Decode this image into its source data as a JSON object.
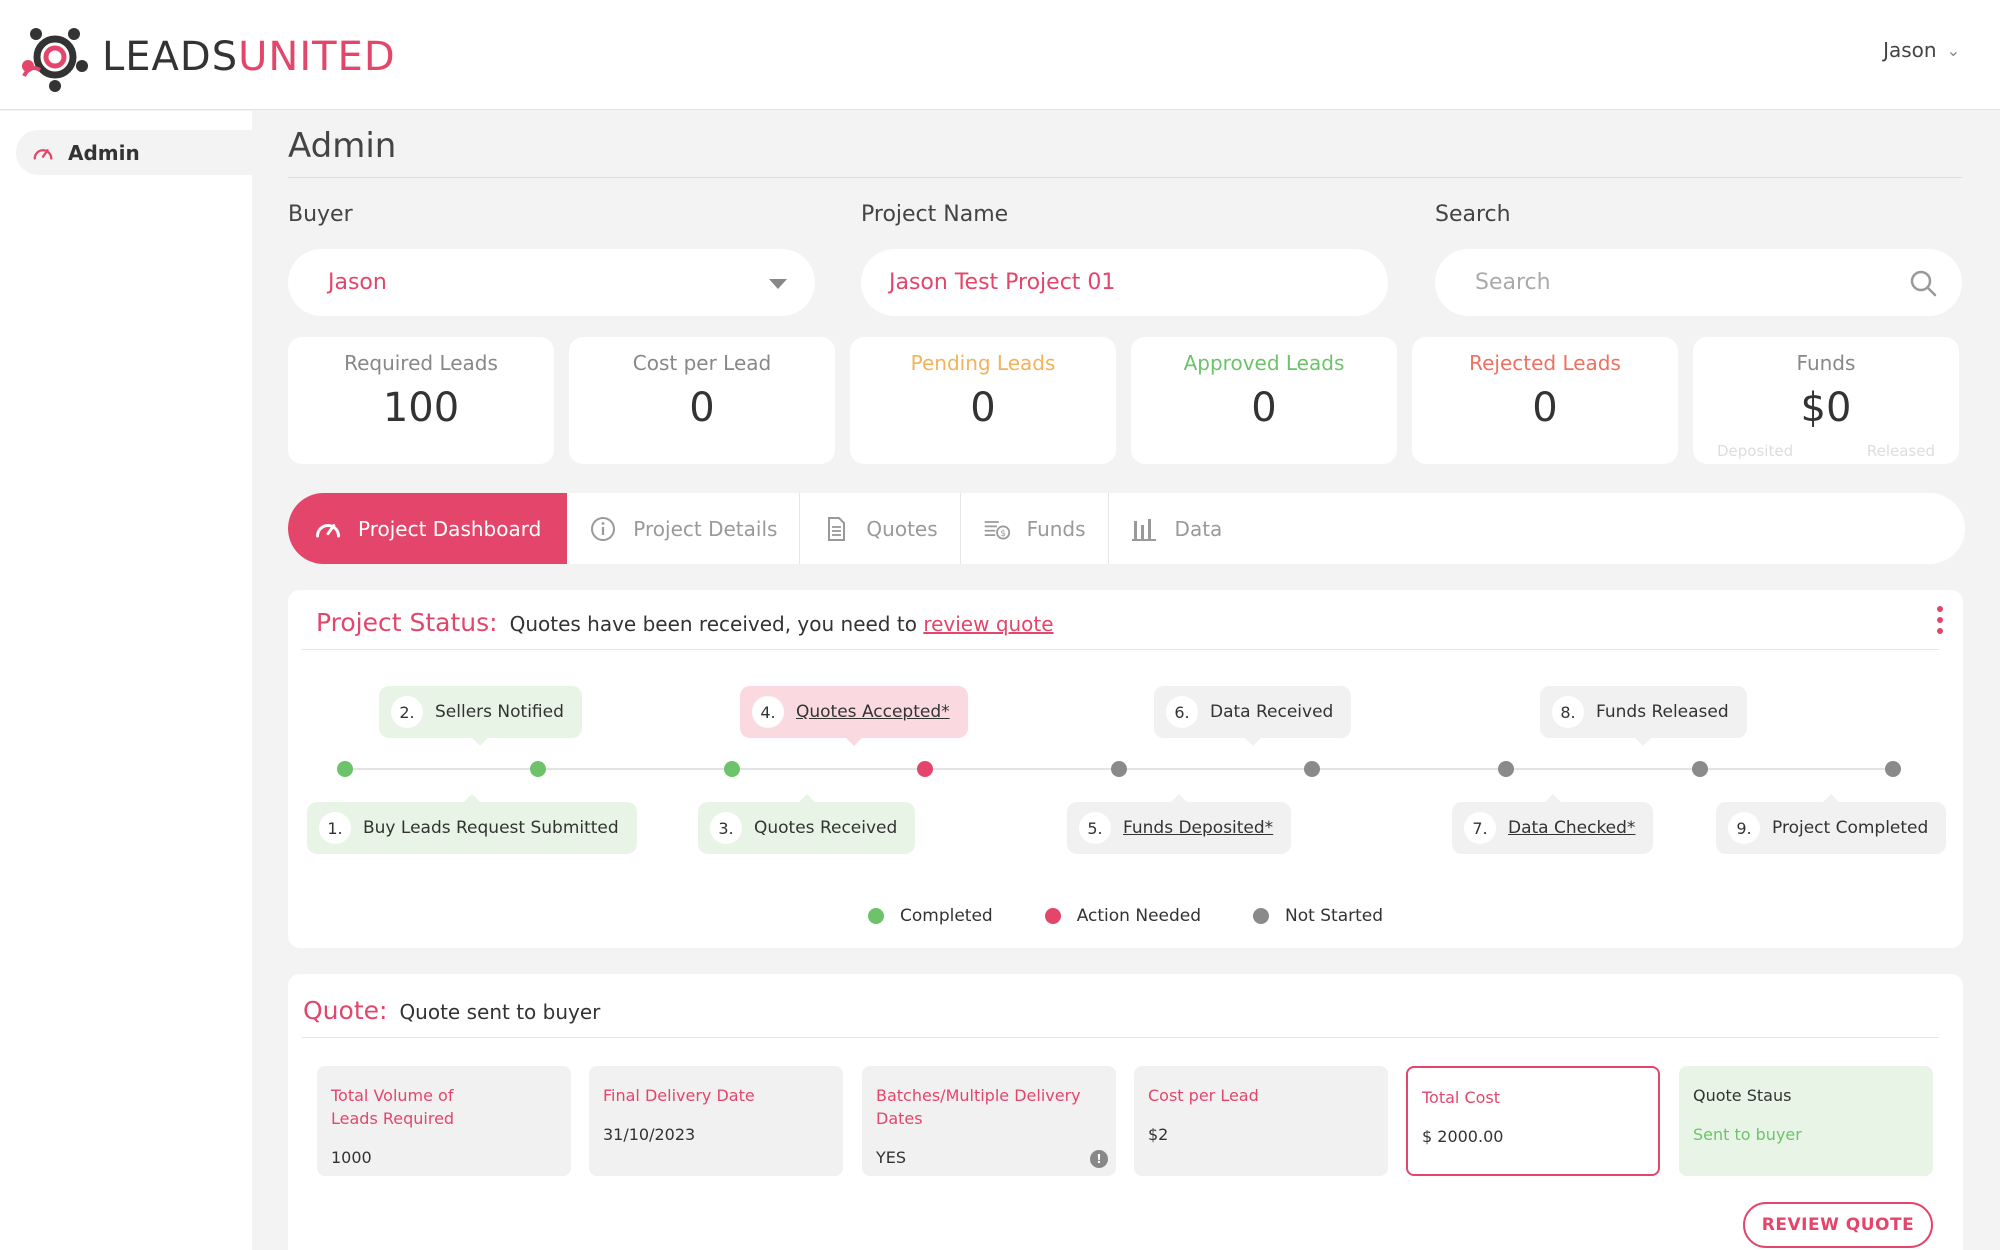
{
  "header": {
    "brand_part1": "LEADS",
    "brand_part2": "UNITED",
    "user_name": "Jason",
    "brand_color": "#e4466b"
  },
  "sidebar": {
    "items": [
      {
        "label": "Admin",
        "icon": "dashboard-gauge-icon",
        "active": true
      }
    ]
  },
  "main": {
    "title": "Admin",
    "filters": {
      "buyer_label": "Buyer",
      "buyer_value": "Jason",
      "project_label": "Project Name",
      "project_value": "Jason Test Project 01",
      "search_label": "Search",
      "search_placeholder": "Search"
    },
    "stats": [
      {
        "label": "Required Leads",
        "value": "100",
        "color": "#888888"
      },
      {
        "label": "Cost per Lead",
        "value": "0",
        "color": "#888888"
      },
      {
        "label": "Pending Leads",
        "value": "0",
        "color": "#f2b35a"
      },
      {
        "label": "Approved Leads",
        "value": "0",
        "color": "#6cc36a"
      },
      {
        "label": "Rejected Leads",
        "value": "0",
        "color": "#f07060"
      },
      {
        "label": "Funds",
        "value": "$0",
        "color": "#888888",
        "sub_left": "Deposited",
        "sub_right": "Released"
      }
    ],
    "tabs": [
      {
        "label": "Project Dashboard",
        "icon": "gauge-icon",
        "active": true
      },
      {
        "label": "Project Details",
        "icon": "info-icon"
      },
      {
        "label": "Quotes",
        "icon": "document-icon"
      },
      {
        "label": "Funds",
        "icon": "money-icon"
      },
      {
        "label": "Data",
        "icon": "bar-chart-icon"
      }
    ],
    "status": {
      "title": "Project Status:",
      "message": "Quotes have been received, you need to",
      "link": "review quote",
      "steps": [
        {
          "num": "1.",
          "label": "Buy Leads Request Submitted",
          "state": "completed"
        },
        {
          "num": "2.",
          "label": "Sellers Notified",
          "state": "completed"
        },
        {
          "num": "3.",
          "label": "Quotes Received",
          "state": "completed"
        },
        {
          "num": "4.",
          "label": "Quotes Accepted*",
          "state": "action"
        },
        {
          "num": "5.",
          "label": "Funds Deposited*",
          "state": "not-started"
        },
        {
          "num": "6.",
          "label": "Data Received",
          "state": "not-started"
        },
        {
          "num": "7.",
          "label": "Data Checked*",
          "state": "not-started"
        },
        {
          "num": "8.",
          "label": "Funds Released",
          "state": "not-started"
        },
        {
          "num": "9.",
          "label": "Project Completed",
          "state": "not-started"
        }
      ],
      "legend": [
        {
          "label": "Completed",
          "color": "#6cc36a"
        },
        {
          "label": "Action Needed",
          "color": "#e4466b"
        },
        {
          "label": "Not Started",
          "color": "#8a8a8a"
        }
      ]
    },
    "quote": {
      "title": "Quote:",
      "message": "Quote sent to buyer",
      "fields": [
        {
          "label": "Total Volume of Leads Required",
          "value": "1000"
        },
        {
          "label": "Final Delivery Date",
          "value": "31/10/2023"
        },
        {
          "label": "Batches/Multiple Delivery Dates",
          "value": "YES"
        },
        {
          "label": "Cost per Lead",
          "value": "$2"
        },
        {
          "label": "Total Cost",
          "value": "$ 2000.00"
        },
        {
          "label": "Quote Staus",
          "value": "Sent to buyer"
        }
      ],
      "button_label": "REVIEW QUOTE"
    }
  }
}
